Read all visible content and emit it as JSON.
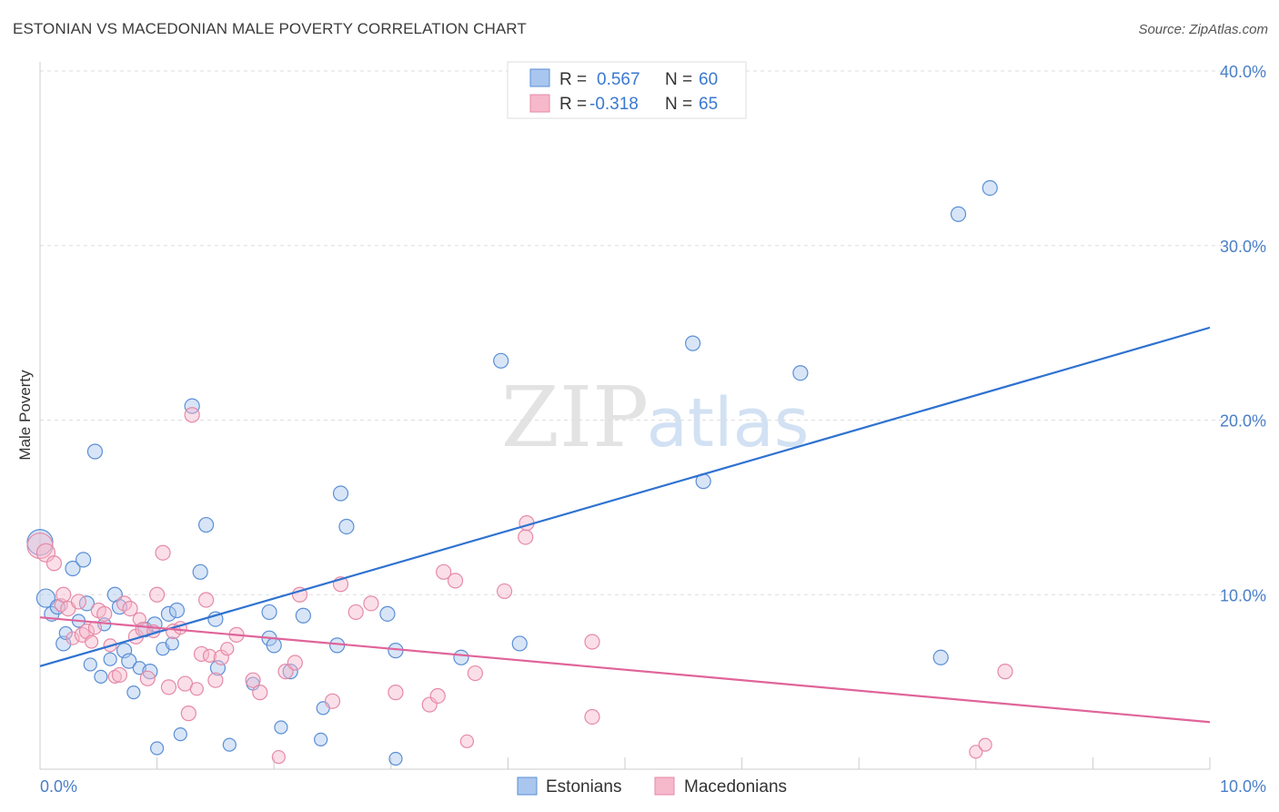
{
  "title": "ESTONIAN VS MACEDONIAN MALE POVERTY CORRELATION CHART",
  "source": "Source: ZipAtlas.com",
  "watermark": {
    "zip": "ZIP",
    "atlas": "atlas"
  },
  "colors": {
    "blue_fill": "#a9c6ee",
    "blue_stroke": "#5b8fd6",
    "blue_line": "#2f72d0",
    "pink_fill": "#f6b8cb",
    "pink_stroke": "#e68aa7",
    "pink_line": "#e0649a",
    "tick_text": "#4a7fc8",
    "grid": "#dddddd"
  },
  "legend": {
    "rows": [
      {
        "r_label": "R =",
        "r_value": "0.567",
        "n_label": "N =",
        "n_value": "60"
      },
      {
        "r_label": "R =",
        "r_value": "-0.318",
        "n_label": "N =",
        "n_value": "65"
      }
    ]
  },
  "chart_data": {
    "type": "scatter",
    "title": "ESTONIAN VS MACEDONIAN MALE POVERTY CORRELATION CHART",
    "xlabel": "",
    "ylabel": "Male Poverty",
    "xlim": [
      0,
      10
    ],
    "ylim": [
      0,
      40
    ],
    "x_tick_labels": [
      "0.0%",
      "10.0%"
    ],
    "y_ticks": [
      10,
      20,
      30,
      40
    ],
    "y_tick_labels": [
      "10.0%",
      "20.0%",
      "30.0%",
      "40.0%"
    ],
    "grid": true,
    "legend_position": "top-center",
    "series": [
      {
        "name": "Estonians",
        "r": 0.567,
        "n": 60,
        "trend": {
          "x": [
            0,
            10
          ],
          "y": [
            5.9,
            25.3
          ]
        },
        "points": [
          [
            0.0,
            13.0,
            14
          ],
          [
            0.05,
            9.8,
            10
          ],
          [
            0.1,
            8.9,
            8
          ],
          [
            0.15,
            9.3,
            8
          ],
          [
            0.2,
            7.2,
            8
          ],
          [
            0.22,
            7.8,
            7
          ],
          [
            0.28,
            11.5,
            8
          ],
          [
            0.33,
            8.5,
            7
          ],
          [
            0.37,
            12.0,
            8
          ],
          [
            0.4,
            9.5,
            8
          ],
          [
            0.43,
            6.0,
            7
          ],
          [
            0.47,
            18.2,
            8
          ],
          [
            0.52,
            5.3,
            7
          ],
          [
            0.55,
            8.3,
            7
          ],
          [
            0.6,
            6.3,
            7
          ],
          [
            0.64,
            10.0,
            8
          ],
          [
            0.68,
            9.3,
            8
          ],
          [
            0.72,
            6.8,
            8
          ],
          [
            0.76,
            6.2,
            8
          ],
          [
            0.8,
            4.4,
            7
          ],
          [
            0.85,
            5.8,
            7
          ],
          [
            0.9,
            8.0,
            8
          ],
          [
            0.94,
            5.6,
            8
          ],
          [
            0.98,
            8.3,
            8
          ],
          [
            1.0,
            1.2,
            7
          ],
          [
            1.05,
            6.9,
            7
          ],
          [
            1.1,
            8.9,
            8
          ],
          [
            1.13,
            7.2,
            7
          ],
          [
            1.17,
            9.1,
            8
          ],
          [
            1.2,
            2.0,
            7
          ],
          [
            1.3,
            20.8,
            8
          ],
          [
            1.37,
            11.3,
            8
          ],
          [
            1.42,
            14.0,
            8
          ],
          [
            1.5,
            8.6,
            8
          ],
          [
            1.52,
            5.8,
            8
          ],
          [
            1.62,
            1.4,
            7
          ],
          [
            1.82,
            4.9,
            7
          ],
          [
            1.96,
            9.0,
            8
          ],
          [
            1.96,
            7.5,
            8
          ],
          [
            2.0,
            7.1,
            8
          ],
          [
            2.06,
            2.4,
            7
          ],
          [
            2.14,
            5.6,
            8
          ],
          [
            2.25,
            8.8,
            8
          ],
          [
            2.42,
            3.5,
            7
          ],
          [
            2.4,
            1.7,
            7
          ],
          [
            2.54,
            7.1,
            8
          ],
          [
            2.57,
            15.8,
            8
          ],
          [
            2.62,
            13.9,
            8
          ],
          [
            2.97,
            8.9,
            8
          ],
          [
            3.04,
            6.8,
            8
          ],
          [
            3.04,
            0.6,
            7
          ],
          [
            3.6,
            6.4,
            8
          ],
          [
            3.94,
            23.4,
            8
          ],
          [
            4.1,
            7.2,
            8
          ],
          [
            5.58,
            24.4,
            8
          ],
          [
            5.67,
            16.5,
            8
          ],
          [
            6.5,
            22.7,
            8
          ],
          [
            7.7,
            6.4,
            8
          ],
          [
            7.85,
            31.8,
            8
          ],
          [
            8.12,
            33.3,
            8
          ]
        ]
      },
      {
        "name": "Macedonians",
        "r": -0.318,
        "n": 65,
        "trend": {
          "x": [
            0,
            10
          ],
          "y": [
            8.7,
            2.7
          ]
        },
        "points": [
          [
            0.0,
            12.8,
            14
          ],
          [
            0.05,
            12.4,
            10
          ],
          [
            0.12,
            11.8,
            8
          ],
          [
            0.18,
            9.4,
            7
          ],
          [
            0.2,
            10.0,
            8
          ],
          [
            0.24,
            9.2,
            8
          ],
          [
            0.28,
            7.5,
            7
          ],
          [
            0.33,
            9.6,
            8
          ],
          [
            0.36,
            7.7,
            8
          ],
          [
            0.4,
            7.9,
            8
          ],
          [
            0.44,
            7.3,
            7
          ],
          [
            0.47,
            8.1,
            7
          ],
          [
            0.5,
            9.1,
            8
          ],
          [
            0.55,
            8.9,
            8
          ],
          [
            0.6,
            7.1,
            7
          ],
          [
            0.64,
            5.3,
            7
          ],
          [
            0.68,
            5.4,
            8
          ],
          [
            0.72,
            9.5,
            8
          ],
          [
            0.77,
            9.2,
            8
          ],
          [
            0.82,
            7.6,
            8
          ],
          [
            0.85,
            8.6,
            7
          ],
          [
            0.88,
            8.0,
            8
          ],
          [
            0.92,
            5.2,
            8
          ],
          [
            0.97,
            7.9,
            7
          ],
          [
            1.0,
            10.0,
            8
          ],
          [
            1.05,
            12.4,
            8
          ],
          [
            1.1,
            4.7,
            8
          ],
          [
            1.14,
            7.9,
            8
          ],
          [
            1.2,
            8.1,
            7
          ],
          [
            1.24,
            4.9,
            8
          ],
          [
            1.27,
            3.2,
            8
          ],
          [
            1.3,
            20.3,
            8
          ],
          [
            1.34,
            4.6,
            7
          ],
          [
            1.38,
            6.6,
            8
          ],
          [
            1.42,
            9.7,
            8
          ],
          [
            1.45,
            6.5,
            7
          ],
          [
            1.5,
            5.1,
            8
          ],
          [
            1.55,
            6.4,
            8
          ],
          [
            1.6,
            6.9,
            7
          ],
          [
            1.68,
            7.7,
            8
          ],
          [
            1.82,
            5.1,
            8
          ],
          [
            1.88,
            4.4,
            8
          ],
          [
            2.04,
            0.7,
            7
          ],
          [
            2.1,
            5.6,
            8
          ],
          [
            2.18,
            6.1,
            8
          ],
          [
            2.22,
            10.0,
            8
          ],
          [
            2.5,
            3.9,
            8
          ],
          [
            2.57,
            10.6,
            8
          ],
          [
            2.7,
            9.0,
            8
          ],
          [
            2.83,
            9.5,
            8
          ],
          [
            3.04,
            4.4,
            8
          ],
          [
            3.33,
            3.7,
            8
          ],
          [
            3.4,
            4.2,
            8
          ],
          [
            3.45,
            11.3,
            8
          ],
          [
            3.55,
            10.8,
            8
          ],
          [
            3.65,
            1.6,
            7
          ],
          [
            3.72,
            5.5,
            8
          ],
          [
            3.97,
            10.2,
            8
          ],
          [
            4.15,
            13.3,
            8
          ],
          [
            4.16,
            14.1,
            8
          ],
          [
            4.72,
            3.0,
            8
          ],
          [
            4.72,
            7.3,
            8
          ],
          [
            8.0,
            1.0,
            7
          ],
          [
            8.08,
            1.4,
            7
          ],
          [
            8.25,
            5.6,
            8
          ]
        ]
      }
    ]
  }
}
